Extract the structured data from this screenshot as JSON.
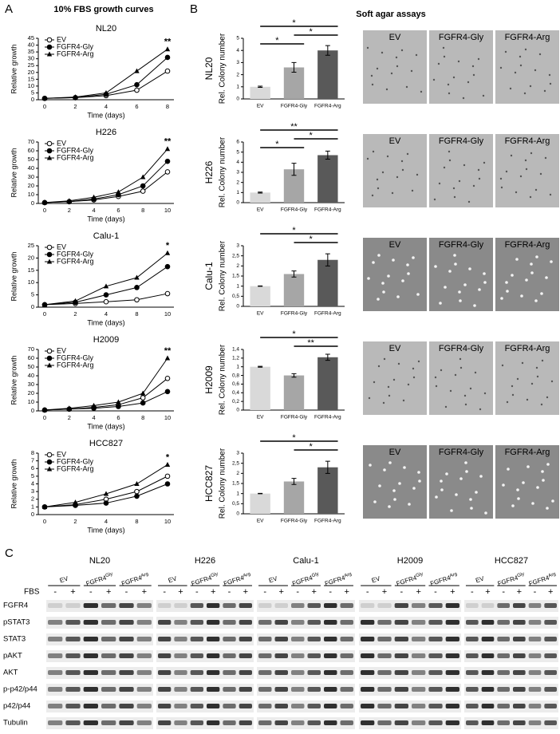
{
  "panel_labels": [
    "A",
    "B",
    "C"
  ],
  "growth_title": "10% FBS growth curves",
  "soft_agar_title": "Soft agar assays",
  "chart_data": [
    {
      "type": "line",
      "title": "NL20",
      "categories": [
        "0",
        "2",
        "4",
        "6",
        "8"
      ],
      "x_label": "Time (days)",
      "y_label": "Relative growth",
      "ylim": [
        0,
        45
      ],
      "yticks": [
        0,
        5,
        10,
        15,
        20,
        25,
        30,
        35,
        40,
        45
      ],
      "annotation": "**",
      "series": [
        {
          "name": "EV",
          "color": "#000000",
          "marker": "open-circle",
          "values": [
            1,
            1.5,
            3,
            7,
            21
          ]
        },
        {
          "name": "FGFR4-Gly",
          "color": "#000000",
          "marker": "circle",
          "values": [
            1,
            1.5,
            4,
            11,
            31
          ]
        },
        {
          "name": "FGFR4-Arg",
          "color": "#000000",
          "marker": "triangle",
          "values": [
            1,
            2,
            5,
            21,
            37
          ]
        }
      ]
    },
    {
      "type": "line",
      "title": "H226",
      "categories": [
        "0",
        "2",
        "4",
        "6",
        "8",
        "10"
      ],
      "x_label": "Time (days)",
      "y_label": "Relative growth",
      "ylim": [
        0,
        70
      ],
      "yticks": [
        0,
        10,
        20,
        30,
        40,
        50,
        60,
        70
      ],
      "annotation": "**",
      "series": [
        {
          "name": "EV",
          "color": "#000000",
          "marker": "open-circle",
          "values": [
            1,
            2,
            4,
            8,
            14,
            36
          ]
        },
        {
          "name": "FGFR4-Gly",
          "color": "#000000",
          "marker": "circle",
          "values": [
            1,
            2,
            5,
            10,
            20,
            48
          ]
        },
        {
          "name": "FGFR4-Arg",
          "color": "#000000",
          "marker": "triangle",
          "values": [
            1,
            3,
            7,
            13,
            30,
            62
          ]
        }
      ]
    },
    {
      "type": "line",
      "title": "Calu-1",
      "categories": [
        "0",
        "2",
        "4",
        "8",
        "10"
      ],
      "x_label": "Time (days)",
      "y_label": "Relative growth",
      "ylim": [
        0,
        25
      ],
      "yticks": [
        0,
        5,
        10,
        15,
        20,
        25
      ],
      "annotation": "*",
      "series": [
        {
          "name": "EV",
          "color": "#000000",
          "marker": "open-circle",
          "values": [
            1,
            1.5,
            2.2,
            3,
            5.5
          ]
        },
        {
          "name": "FGFR4-Gly",
          "color": "#000000",
          "marker": "circle",
          "values": [
            1,
            2,
            5,
            8,
            16.5
          ]
        },
        {
          "name": "FGFR4-Arg",
          "color": "#000000",
          "marker": "triangle",
          "values": [
            1,
            2.5,
            8.5,
            12,
            22
          ]
        }
      ]
    },
    {
      "type": "line",
      "title": "H2009",
      "categories": [
        "0",
        "2",
        "4",
        "6",
        "8",
        "10"
      ],
      "x_label": "Time (days)",
      "y_label": "Relative growth",
      "ylim": [
        0,
        70
      ],
      "yticks": [
        0,
        10,
        20,
        30,
        40,
        50,
        60,
        70
      ],
      "annotation": "**",
      "series": [
        {
          "name": "EV",
          "color": "#000000",
          "marker": "open-circle",
          "values": [
            1,
            2,
            4,
            7,
            15,
            37
          ]
        },
        {
          "name": "FGFR4-Gly",
          "color": "#000000",
          "marker": "circle",
          "values": [
            1,
            2,
            3,
            5,
            9,
            22
          ]
        },
        {
          "name": "FGFR4-Arg",
          "color": "#000000",
          "marker": "triangle",
          "values": [
            1,
            3,
            6,
            10,
            20,
            60
          ]
        }
      ]
    },
    {
      "type": "line",
      "title": "HCC827",
      "categories": [
        "0",
        "2",
        "4",
        "8",
        "10"
      ],
      "x_label": "Time (days)",
      "y_label": "Relative growth",
      "ylim": [
        0,
        8
      ],
      "yticks": [
        0,
        1,
        2,
        3,
        4,
        5,
        6,
        7,
        8
      ],
      "annotation": "*",
      "series": [
        {
          "name": "EV",
          "color": "#000000",
          "marker": "open-circle",
          "values": [
            1,
            1.3,
            2,
            3,
            5
          ]
        },
        {
          "name": "FGFR4-Gly",
          "color": "#000000",
          "marker": "circle",
          "values": [
            1,
            1.2,
            1.5,
            2.4,
            4
          ]
        },
        {
          "name": "FGFR4-Arg",
          "color": "#000000",
          "marker": "triangle",
          "values": [
            1,
            1.6,
            2.7,
            4,
            6.5
          ]
        }
      ]
    },
    {
      "type": "bar",
      "title": "NL20",
      "y_label": "Rel. Colony number",
      "categories": [
        "EV",
        "FGFR4-Gly",
        "FGFR4-Arg"
      ],
      "values": [
        1,
        2.6,
        4
      ],
      "errors": [
        0.05,
        0.4,
        0.4
      ],
      "colors": [
        "#d9d9d9",
        "#a6a6a6",
        "#595959"
      ],
      "ylim": [
        0,
        5
      ],
      "yticks": [
        0,
        1,
        2,
        3,
        4,
        5
      ],
      "brackets": [
        {
          "from": 0,
          "to": 2,
          "label": "*"
        },
        {
          "from": 1,
          "to": 2,
          "label": "*"
        },
        {
          "from": 0,
          "to": 1,
          "label": "*"
        }
      ]
    },
    {
      "type": "bar",
      "title": "H226",
      "y_label": "Rel. Colony number",
      "categories": [
        "EV",
        "FGFR4-Gly",
        "FGFR4-Arg"
      ],
      "values": [
        1,
        3.3,
        4.7
      ],
      "errors": [
        0.05,
        0.6,
        0.4
      ],
      "colors": [
        "#d9d9d9",
        "#a6a6a6",
        "#595959"
      ],
      "ylim": [
        0,
        6
      ],
      "yticks": [
        0,
        1,
        2,
        3,
        4,
        5,
        6
      ],
      "brackets": [
        {
          "from": 0,
          "to": 2,
          "label": "**"
        },
        {
          "from": 1,
          "to": 2,
          "label": "*"
        },
        {
          "from": 0,
          "to": 1,
          "label": "*"
        }
      ]
    },
    {
      "type": "bar",
      "title": "Calu-1",
      "y_label": "Rel. Colony number",
      "categories": [
        "EV",
        "FGFR4-Gly",
        "FGFR4-Arg"
      ],
      "values": [
        1,
        1.6,
        2.3
      ],
      "errors": [
        0.01,
        0.15,
        0.3
      ],
      "colors": [
        "#d9d9d9",
        "#a6a6a6",
        "#595959"
      ],
      "ylim": [
        0,
        3
      ],
      "yticks": [
        0,
        {
          "value": 0.5,
          "label": "0,5"
        },
        1,
        {
          "value": 1.5,
          "label": "1,5"
        },
        2,
        {
          "value": 2.5,
          "label": "2,5"
        },
        3
      ],
      "brackets": [
        {
          "from": 0,
          "to": 2,
          "label": "*"
        },
        {
          "from": 1,
          "to": 2,
          "label": "*"
        }
      ]
    },
    {
      "type": "bar",
      "title": "H2009",
      "y_label": "Rel. Colony number",
      "categories": [
        "EV",
        "FGFR4-Gly",
        "FGFR4-Arg"
      ],
      "values": [
        1,
        0.8,
        1.22
      ],
      "errors": [
        0.01,
        0.04,
        0.07
      ],
      "colors": [
        "#d9d9d9",
        "#a6a6a6",
        "#595959"
      ],
      "ylim": [
        0,
        1.4
      ],
      "yticks": [
        0,
        {
          "value": 0.2,
          "label": "0,2"
        },
        {
          "value": 0.4,
          "label": "0,4"
        },
        {
          "value": 0.6,
          "label": "0,6"
        },
        {
          "value": 0.8,
          "label": "0,8"
        },
        1,
        {
          "value": 1.2,
          "label": "1,2"
        },
        {
          "value": 1.4,
          "label": "1,4"
        }
      ],
      "brackets": [
        {
          "from": 0,
          "to": 2,
          "label": "*"
        },
        {
          "from": 1,
          "to": 2,
          "label": "**"
        }
      ]
    },
    {
      "type": "bar",
      "title": "HCC827",
      "y_label": "Rel. Colony number",
      "categories": [
        "EV",
        "FGFR4-Gly",
        "FGFR4-Arg"
      ],
      "values": [
        1,
        1.6,
        2.3
      ],
      "errors": [
        0.01,
        0.15,
        0.3
      ],
      "colors": [
        "#d9d9d9",
        "#a6a6a6",
        "#595959"
      ],
      "ylim": [
        0,
        3
      ],
      "yticks": [
        0,
        {
          "value": 0.5,
          "label": "0,5"
        },
        1,
        {
          "value": 1.5,
          "label": "1,5"
        },
        2,
        {
          "value": 2.5,
          "label": "2,5"
        },
        3
      ],
      "brackets": [
        {
          "from": 0,
          "to": 2,
          "label": "*"
        },
        {
          "from": 1,
          "to": 2,
          "label": "*"
        }
      ]
    }
  ],
  "soft_agar_images": [
    {
      "labels": [
        "EV",
        "FGFR4-Gly",
        "FGFR4-Arg"
      ]
    },
    {
      "labels": [
        "EV",
        "FGFR4-Gly",
        "FGFR4-Arg"
      ]
    },
    {
      "labels": [
        "EV",
        "FGFR4-Gly",
        "FGFR4-Arg"
      ]
    },
    {
      "labels": [
        "EV",
        "FGFR4-Gly",
        "FGFR4-Arg"
      ]
    },
    {
      "labels": [
        "EV",
        "FGFR4-Gly",
        "FGFR4-Arg"
      ]
    }
  ],
  "western_blot": {
    "fbs_label": "FBS",
    "proteins": [
      "FGFR4",
      "pSTAT3",
      "STAT3",
      "pAKT",
      "AKT",
      "p-p42/p44",
      "p42/p44",
      "Tubulin"
    ],
    "groups": [
      {
        "name": "NL20",
        "conditions": [
          {
            "text": "EV"
          },
          {
            "text": "FGFR4",
            "sup": "Gly"
          },
          {
            "text": "FGFR4",
            "sup": "Arg"
          }
        ],
        "signs": [
          "-",
          "+",
          "-",
          "+",
          "-",
          "+"
        ]
      },
      {
        "name": "H226",
        "conditions": [
          {
            "text": "EV"
          },
          {
            "text": "FGFR4",
            "sup": "Gly"
          },
          {
            "text": "FGFR4",
            "sup": "Arg"
          }
        ],
        "signs": [
          "-",
          "+",
          "-",
          "+",
          "-",
          "+"
        ]
      },
      {
        "name": "Calu-1",
        "conditions": [
          {
            "text": "EV"
          },
          {
            "text": "FGFR4",
            "sup": "Gly"
          },
          {
            "text": "FGFR4",
            "sup": "Arg"
          }
        ],
        "signs": [
          "-",
          "+",
          "-",
          "+",
          "-",
          "+"
        ]
      },
      {
        "name": "H2009",
        "conditions": [
          {
            "text": "EV"
          },
          {
            "text": "FGFR4",
            "sup": "Gly"
          },
          {
            "text": "FGFR4",
            "sup": "Arg"
          }
        ],
        "signs": [
          "-",
          "+",
          "-",
          "+",
          "-",
          "+"
        ]
      },
      {
        "name": "HCC827",
        "conditions": [
          {
            "text": "EV"
          },
          {
            "text": "FGFR4",
            "sup": "Gly"
          },
          {
            "text": "FGFR4",
            "sup": "Arg"
          }
        ],
        "signs": [
          "-",
          "+",
          "-",
          "+",
          "-",
          "+"
        ]
      }
    ]
  }
}
